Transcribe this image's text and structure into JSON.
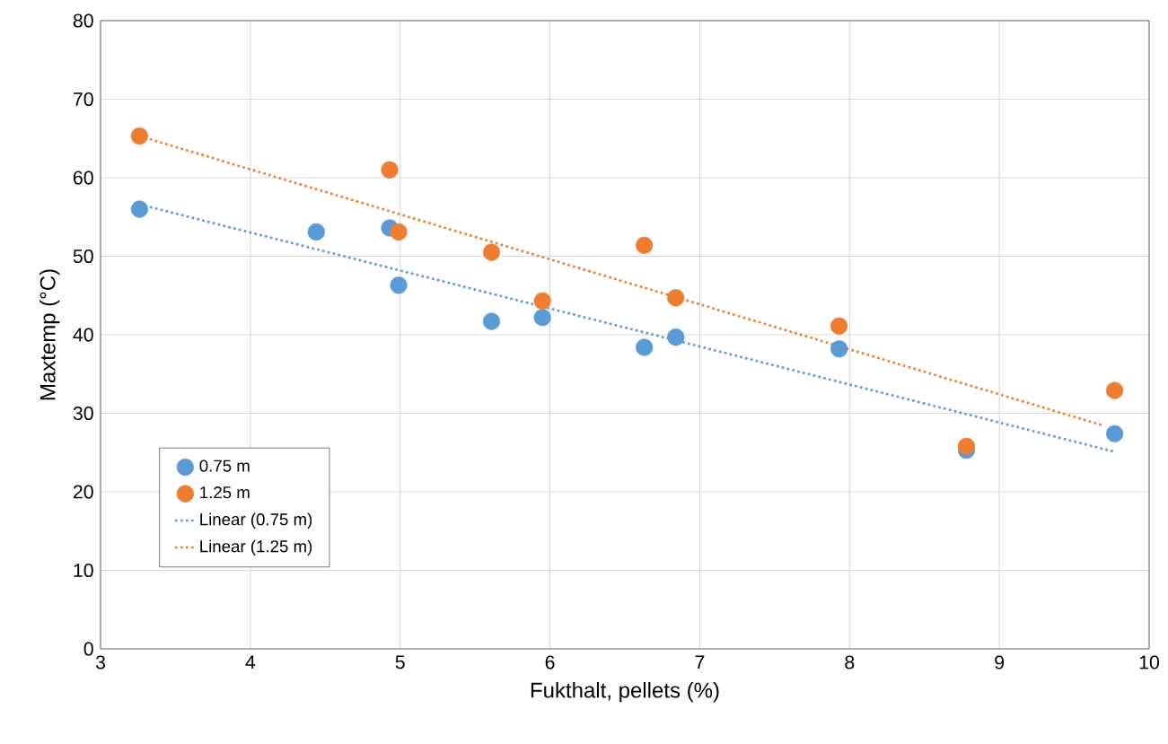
{
  "chart_data": {
    "type": "scatter",
    "xlabel": "Fukthalt, pellets (%)",
    "ylabel": "Maxtemp (°C)",
    "xlim": [
      3,
      10
    ],
    "xticks": [
      3,
      4,
      5,
      6,
      7,
      8,
      9,
      10
    ],
    "ylim": [
      0,
      80
    ],
    "yticks": [
      0,
      10,
      20,
      30,
      40,
      50,
      60,
      70,
      80
    ],
    "grid": true,
    "legend": "bottom left",
    "marker": "circle",
    "series": [
      {
        "name": "0.75 m",
        "color": "#5b9bd5",
        "x": [
          3.26,
          4.44,
          4.93,
          4.99,
          5.61,
          5.95,
          6.63,
          6.84,
          7.93,
          8.78,
          9.77
        ],
        "values": [
          56.0,
          53.1,
          53.6,
          46.3,
          41.7,
          42.2,
          38.4,
          39.7,
          38.2,
          25.3,
          27.4
        ]
      },
      {
        "name": "1.25 m",
        "color": "#ed7d31",
        "x": [
          3.26,
          4.93,
          4.99,
          5.61,
          5.95,
          6.63,
          6.84,
          7.93,
          8.78,
          9.77
        ],
        "values": [
          65.3,
          61.0,
          53.1,
          50.5,
          44.3,
          51.4,
          44.7,
          41.1,
          25.8,
          32.9
        ]
      },
      {
        "name": "Linear (0.75 m)",
        "type": "line",
        "line_style": "dotted",
        "marker": "none",
        "color": "#5b9bd5",
        "x": [
          3.26,
          9.77
        ],
        "values": [
          56.6,
          25.1
        ]
      },
      {
        "name": "Linear (1.25 m)",
        "type": "line",
        "line_style": "dotted",
        "marker": "none",
        "color": "#ed7d31",
        "x": [
          3.26,
          9.7
        ],
        "values": [
          65.3,
          28.4
        ]
      }
    ]
  }
}
